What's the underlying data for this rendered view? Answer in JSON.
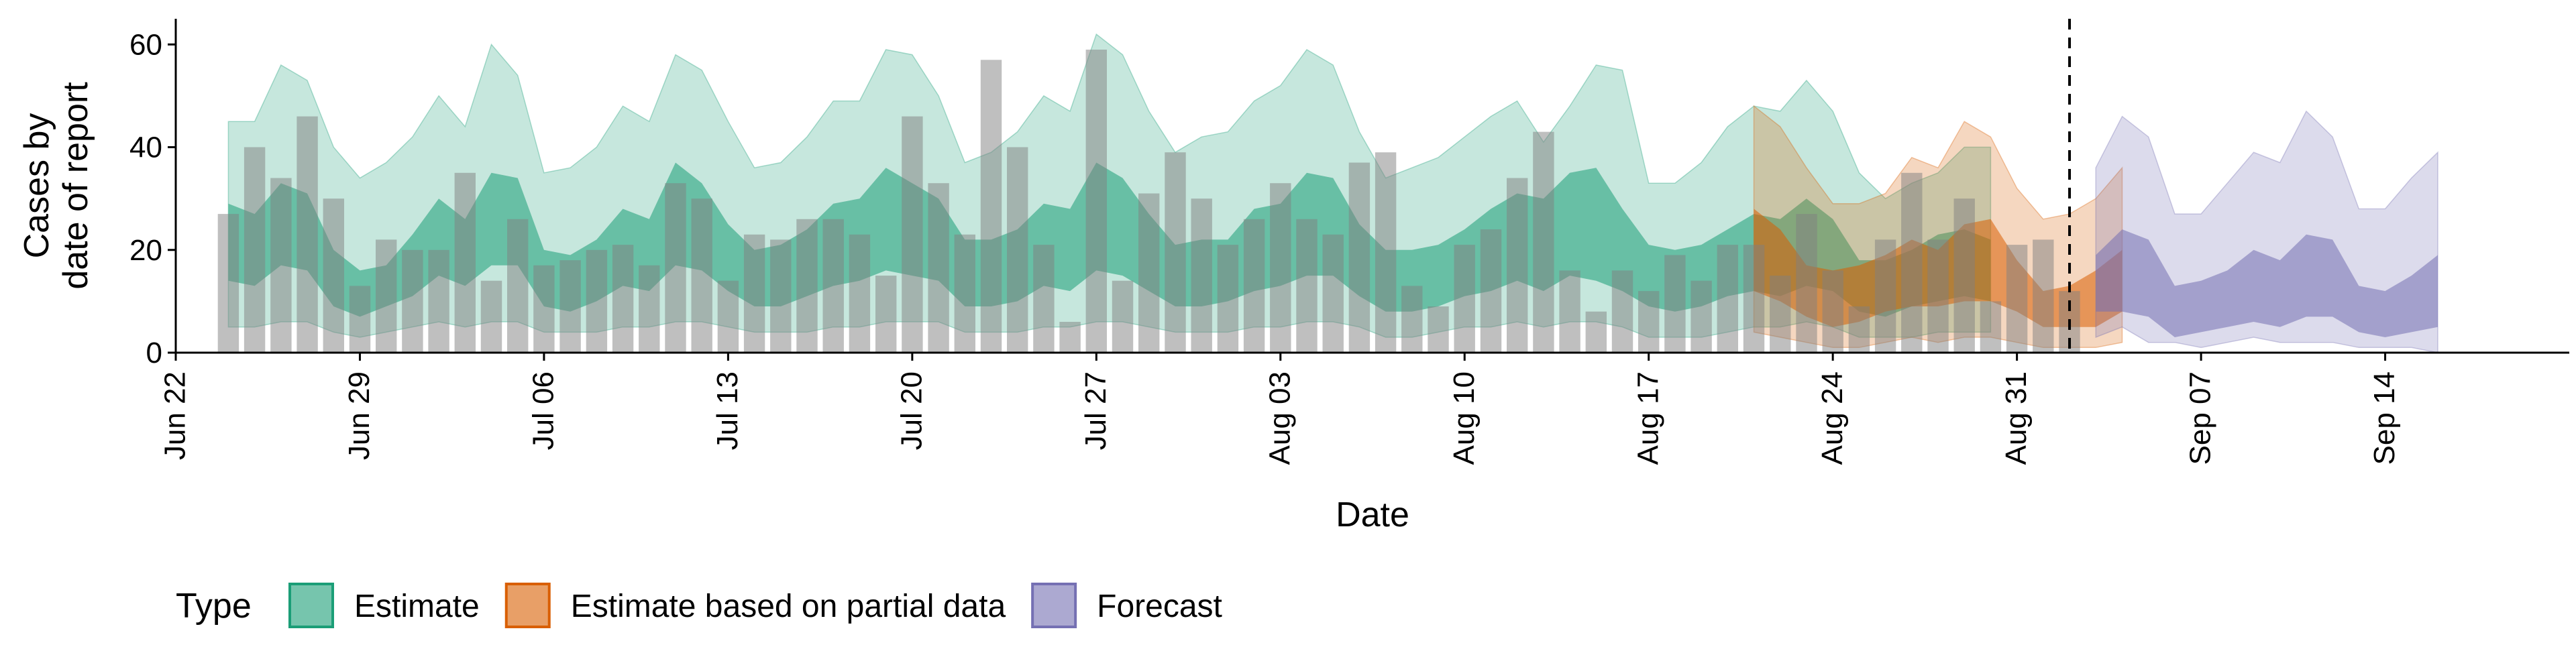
{
  "chart_data": {
    "type": "area",
    "xlabel": "Date",
    "ylabel_lines": [
      "Cases by",
      "date of report"
    ],
    "ylim": [
      0,
      65
    ],
    "y_ticks": [
      0,
      20,
      40,
      60
    ],
    "x_range": [
      "2020-06-22",
      "2020-09-21"
    ],
    "x_ticks": [
      {
        "date": "2020-06-22",
        "label": "Jun 22"
      },
      {
        "date": "2020-06-29",
        "label": "Jun 29"
      },
      {
        "date": "2020-07-06",
        "label": "Jul 06"
      },
      {
        "date": "2020-07-13",
        "label": "Jul 13"
      },
      {
        "date": "2020-07-20",
        "label": "Jul 20"
      },
      {
        "date": "2020-07-27",
        "label": "Jul 27"
      },
      {
        "date": "2020-08-03",
        "label": "Aug 03"
      },
      {
        "date": "2020-08-10",
        "label": "Aug 10"
      },
      {
        "date": "2020-08-17",
        "label": "Aug 17"
      },
      {
        "date": "2020-08-24",
        "label": "Aug 24"
      },
      {
        "date": "2020-08-31",
        "label": "Aug 31"
      },
      {
        "date": "2020-09-07",
        "label": "Sep 07"
      },
      {
        "date": "2020-09-14",
        "label": "Sep 14"
      }
    ],
    "forecast_date": "2020-09-02",
    "observed": {
      "start_date": "2020-06-24",
      "values": [
        27,
        40,
        34,
        46,
        30,
        13,
        22,
        20,
        20,
        35,
        14,
        26,
        17,
        18,
        20,
        21,
        17,
        33,
        30,
        14,
        23,
        22,
        26,
        26,
        23,
        15,
        46,
        33,
        23,
        57,
        40,
        21,
        6,
        59,
        14,
        31,
        39,
        30,
        21,
        26,
        33,
        26,
        23,
        37,
        39,
        13,
        9,
        21,
        24,
        34,
        43,
        16,
        8,
        16,
        12,
        19,
        14,
        21,
        21,
        15,
        27,
        16,
        9,
        22,
        35,
        22,
        30,
        10,
        21,
        22,
        12
      ]
    },
    "series": [
      {
        "name": "Estimate",
        "color": "#1b9e77",
        "start_date": "2020-06-24",
        "upper90": [
          45,
          45,
          56,
          53,
          40,
          34,
          37,
          42,
          50,
          44,
          60,
          54,
          35,
          36,
          40,
          48,
          45,
          58,
          55,
          45,
          36,
          37,
          42,
          49,
          49,
          59,
          58,
          50,
          37,
          39,
          43,
          50,
          47,
          62,
          58,
          47,
          39,
          42,
          43,
          49,
          52,
          59,
          56,
          43,
          34,
          36,
          38,
          42,
          46,
          49,
          41,
          48,
          56,
          55,
          33,
          33,
          37,
          44,
          48,
          47,
          53,
          47,
          35,
          30,
          33,
          35,
          40,
          40
        ],
        "upper50": [
          29,
          27,
          33,
          31,
          20,
          16,
          17,
          23,
          30,
          26,
          35,
          34,
          20,
          19,
          22,
          28,
          26,
          37,
          33,
          25,
          20,
          21,
          24,
          29,
          30,
          36,
          33,
          30,
          22,
          22,
          24,
          29,
          28,
          37,
          34,
          27,
          21,
          22,
          22,
          28,
          29,
          35,
          34,
          25,
          20,
          20,
          21,
          24,
          28,
          31,
          30,
          35,
          36,
          28,
          21,
          20,
          21,
          24,
          27,
          26,
          30,
          26,
          18,
          18,
          20,
          23,
          24,
          22
        ],
        "lower50": [
          14,
          13,
          17,
          16,
          9,
          7,
          9,
          11,
          15,
          13,
          17,
          17,
          9,
          8,
          10,
          13,
          12,
          17,
          16,
          12,
          9,
          9,
          11,
          13,
          14,
          16,
          15,
          14,
          9,
          9,
          10,
          13,
          12,
          16,
          15,
          12,
          9,
          9,
          10,
          12,
          13,
          15,
          15,
          11,
          8,
          8,
          9,
          11,
          12,
          14,
          12,
          15,
          14,
          12,
          9,
          8,
          9,
          11,
          12,
          11,
          13,
          12,
          8,
          7,
          9,
          10,
          11,
          10
        ],
        "lower90": [
          5,
          5,
          6,
          6,
          4,
          3,
          4,
          5,
          6,
          5,
          6,
          6,
          4,
          4,
          4,
          5,
          5,
          6,
          6,
          5,
          4,
          4,
          4,
          5,
          5,
          6,
          6,
          6,
          4,
          4,
          4,
          5,
          5,
          6,
          6,
          5,
          4,
          4,
          4,
          5,
          5,
          6,
          6,
          5,
          3,
          3,
          4,
          5,
          5,
          6,
          5,
          6,
          6,
          5,
          3,
          3,
          3,
          4,
          5,
          5,
          6,
          5,
          3,
          3,
          3,
          4,
          4,
          4
        ]
      },
      {
        "name": "Estimate based on partial data",
        "color": "#d95f02",
        "start_date": "2020-08-21",
        "upper90": [
          48,
          44,
          36,
          29,
          29,
          31,
          38,
          36,
          45,
          42,
          32,
          26,
          27,
          30,
          36
        ],
        "upper50": [
          28,
          24,
          17,
          16,
          17,
          19,
          22,
          20,
          25,
          26,
          18,
          12,
          13,
          16,
          20
        ],
        "lower50": [
          12,
          10,
          7,
          5,
          6,
          8,
          9,
          9,
          10,
          10,
          8,
          5,
          5,
          5,
          8
        ],
        "lower90": [
          4,
          3,
          2,
          1,
          1,
          2,
          3,
          2,
          3,
          3,
          2,
          1,
          1,
          1,
          2
        ]
      },
      {
        "name": "Forecast",
        "color": "#7570b3",
        "start_date": "2020-09-03",
        "upper90": [
          36,
          46,
          42,
          27,
          27,
          33,
          39,
          37,
          47,
          42,
          28,
          28,
          34,
          39
        ],
        "upper50": [
          19,
          24,
          22,
          13,
          14,
          16,
          20,
          18,
          23,
          22,
          13,
          12,
          15,
          19
        ],
        "lower50": [
          8,
          8,
          7,
          3,
          4,
          5,
          6,
          5,
          7,
          7,
          4,
          3,
          4,
          5
        ],
        "lower90": [
          3,
          5,
          2,
          2,
          1,
          2,
          3,
          2,
          2,
          2,
          1,
          1,
          1,
          0
        ]
      }
    ],
    "legend": {
      "title": "Type",
      "position": "bottom",
      "items": [
        {
          "label": "Estimate",
          "color": "#1b9e77"
        },
        {
          "label": "Estimate based on partial data",
          "color": "#d95f02"
        },
        {
          "label": "Forecast",
          "color": "#7570b3"
        }
      ]
    },
    "grid": false
  }
}
